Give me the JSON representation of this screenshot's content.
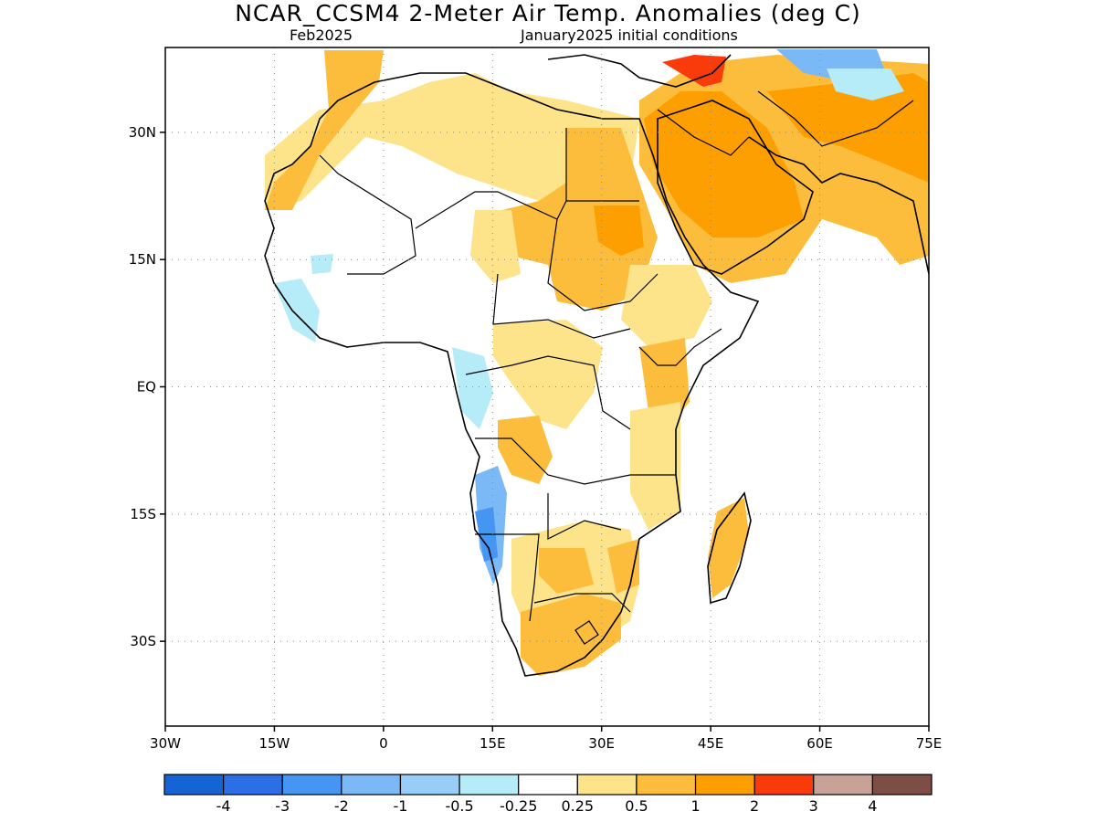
{
  "header": {
    "title": "NCAR_CCSM4 2-Meter Air Temp. Anomalies (deg C)",
    "valid_month": "Feb2025",
    "initial_conditions": "January2025 initial conditions"
  },
  "map": {
    "region": "Africa and Middle East",
    "lon_range": [
      -30,
      75
    ],
    "lat_range": [
      -40,
      40
    ],
    "lat_ticks": [
      {
        "value": 30,
        "label": "30N"
      },
      {
        "value": 15,
        "label": "15N"
      },
      {
        "value": 0,
        "label": "EQ"
      },
      {
        "value": -15,
        "label": "15S"
      },
      {
        "value": -30,
        "label": "30S"
      }
    ],
    "lon_ticks": [
      {
        "value": -30,
        "label": "30W"
      },
      {
        "value": -15,
        "label": "15W"
      },
      {
        "value": 0,
        "label": "0"
      },
      {
        "value": 15,
        "label": "15E"
      },
      {
        "value": 30,
        "label": "30E"
      },
      {
        "value": 45,
        "label": "45E"
      },
      {
        "value": 60,
        "label": "60E"
      },
      {
        "value": 75,
        "label": "75E"
      }
    ],
    "grid": "dotted"
  },
  "legend": {
    "colors": [
      "#1563d4",
      "#2b6ee6",
      "#4496f2",
      "#7ab8f6",
      "#98cdf8",
      "#b6ecf7",
      "#ffffff",
      "#fde38a",
      "#fdbd3c",
      "#fd9f00",
      "#f93b0b",
      "#c8a197",
      "#7d4e45"
    ],
    "labels": [
      "-4",
      "-3",
      "-2",
      "-1",
      "-0.5",
      "-0.25",
      "0.25",
      "0.5",
      "1",
      "2",
      "3",
      "4"
    ]
  }
}
